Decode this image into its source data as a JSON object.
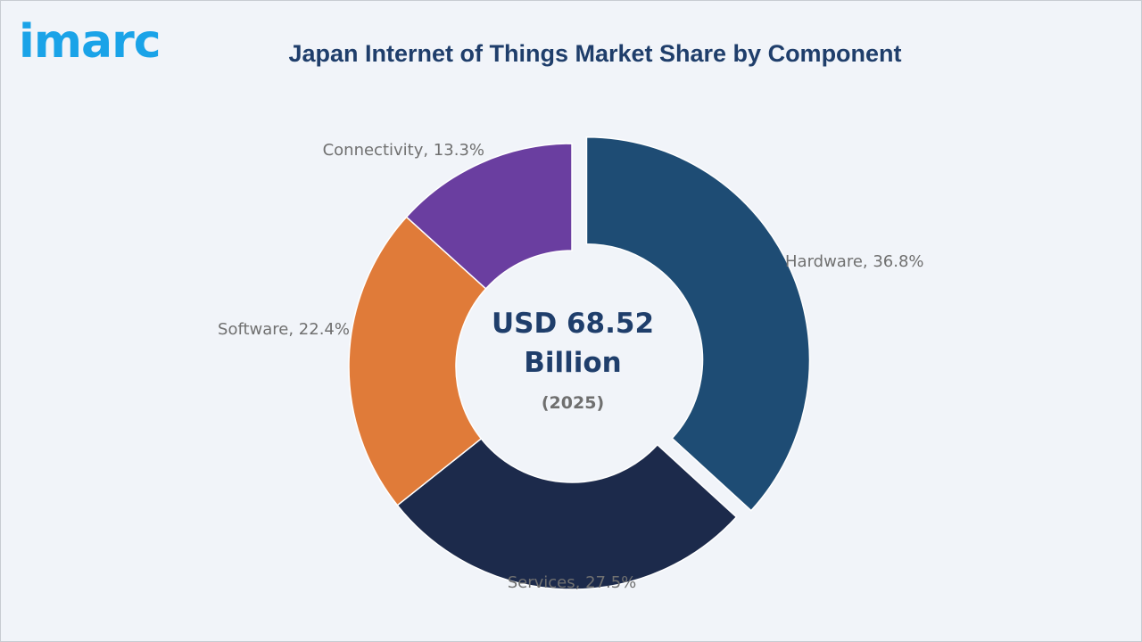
{
  "logo": {
    "text": "imarc"
  },
  "chart_data": {
    "type": "pie",
    "title": "Japan Internet of Things Market Share by Component",
    "center": {
      "line1": "USD 68.52",
      "line2": "Billion",
      "year": "(2025)"
    },
    "categories": [
      "Hardware",
      "Services",
      "Software",
      "Connectivity"
    ],
    "values": [
      36.8,
      27.5,
      22.4,
      13.3
    ],
    "unit": "%",
    "labels": [
      "Hardware, 36.8%",
      "Services, 27.5%",
      "Software, 22.4%",
      "Connectivity, 13.3%"
    ],
    "colors": [
      "#1e4c74",
      "#1c2a4b",
      "#e07b39",
      "#6a3ea0"
    ],
    "exploded": [
      "Hardware"
    ],
    "donut": true
  }
}
